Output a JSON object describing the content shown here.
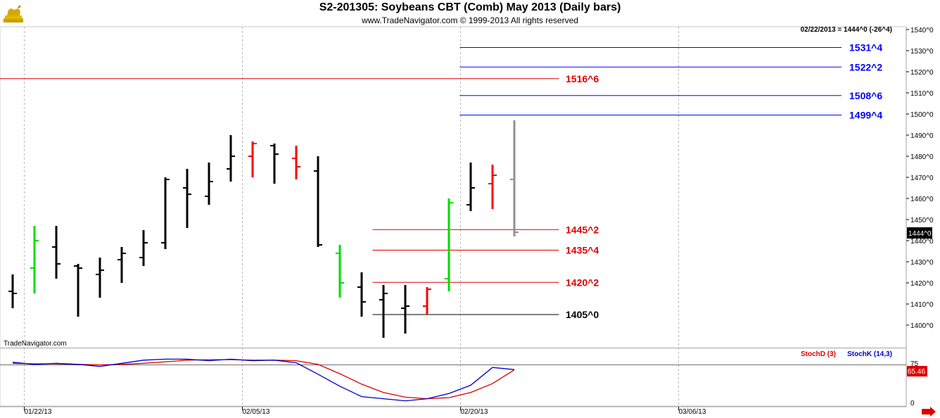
{
  "header": {
    "title": "S2-201305:  Soybeans CBT (Comb) May 2013  (Daily bars)",
    "subtitle": "www.TradeNavigator.com © 1999-2013 All rights reserved"
  },
  "watermark": "TradeNavigator.com",
  "last_price_note": "02/22/2013 = 1444^0 (-26^4)",
  "current_price_tag": "1444^0",
  "logo_icon": "golden-bull-icon",
  "scroll_arrow_icon": "red-right-arrow-icon",
  "colors": {
    "up_bar": "#000000",
    "down_bar": "#ff0000",
    "green_bar": "#00dd00",
    "current_bar": "#909090",
    "blue_level": "#0000ff",
    "red_level": "#dd0000",
    "stoch_d": "#dd0000",
    "stoch_k": "#0000cc"
  },
  "chart_data": [
    {
      "type": "ohlc",
      "title": "S2-201305:  Soybeans CBT (Comb) May 2013  (Daily bars)",
      "y_ticks": [
        "1540^0",
        "1530^0",
        "1520^0",
        "1510^0",
        "1500^0",
        "1490^0",
        "1480^0",
        "1470^0",
        "1460^0",
        "1450^0",
        "1440^0",
        "1430^0",
        "1420^0",
        "1410^0",
        "1400^0"
      ],
      "ylim": [
        1392,
        1542
      ],
      "x_ticks": [
        "01/22/13",
        "02/05/13",
        "02/20/13",
        "03/06/13"
      ],
      "x_tick_bar_index": [
        0.5,
        10.5,
        20.5,
        30.5
      ],
      "bars": [
        {
          "o": 1416,
          "h": 1424,
          "l": 1408,
          "c": 1415,
          "color": "black"
        },
        {
          "o": 1427,
          "h": 1447,
          "l": 1415,
          "c": 1440,
          "color": "green"
        },
        {
          "o": 1437,
          "h": 1447,
          "l": 1422,
          "c": 1429,
          "color": "black"
        },
        {
          "o": 1428,
          "h": 1429,
          "l": 1404,
          "c": 1427,
          "color": "black"
        },
        {
          "o": 1424,
          "h": 1432,
          "l": 1413,
          "c": 1426,
          "color": "black"
        },
        {
          "o": 1431,
          "h": 1437,
          "l": 1420,
          "c": 1434,
          "color": "black"
        },
        {
          "o": 1432,
          "h": 1445,
          "l": 1428,
          "c": 1439,
          "color": "black"
        },
        {
          "o": 1439,
          "h": 1470,
          "l": 1436,
          "c": 1469,
          "color": "black"
        },
        {
          "o": 1465,
          "h": 1474,
          "l": 1446,
          "c": 1462,
          "color": "black"
        },
        {
          "o": 1461,
          "h": 1477,
          "l": 1457,
          "c": 1468,
          "color": "black"
        },
        {
          "o": 1474,
          "h": 1490,
          "l": 1468,
          "c": 1480,
          "color": "black"
        },
        {
          "o": 1480,
          "h": 1487,
          "l": 1470,
          "c": 1486,
          "color": "red"
        },
        {
          "o": 1485,
          "h": 1486,
          "l": 1467,
          "c": 1481,
          "color": "black"
        },
        {
          "o": 1479,
          "h": 1485,
          "l": 1469,
          "c": 1475,
          "color": "red"
        },
        {
          "o": 1473,
          "h": 1480,
          "l": 1437,
          "c": 1438,
          "color": "black"
        },
        {
          "o": 1434,
          "h": 1438,
          "l": 1413,
          "c": 1420,
          "color": "green"
        },
        {
          "o": 1418,
          "h": 1425,
          "l": 1404,
          "c": 1411,
          "color": "black"
        },
        {
          "o": 1412,
          "h": 1419,
          "l": 1394,
          "c": 1415,
          "color": "black"
        },
        {
          "o": 1408,
          "h": 1419,
          "l": 1396,
          "c": 1409,
          "color": "black"
        },
        {
          "o": 1409,
          "h": 1418,
          "l": 1405,
          "c": 1417,
          "color": "red"
        },
        {
          "o": 1422,
          "h": 1460,
          "l": 1416,
          "c": 1458,
          "color": "green"
        },
        {
          "o": 1457,
          "h": 1477,
          "l": 1454,
          "c": 1465,
          "color": "black"
        },
        {
          "o": 1467,
          "h": 1476,
          "l": 1455,
          "c": 1471,
          "color": "red"
        },
        {
          "o": 1469,
          "h": 1497,
          "l": 1442,
          "c": 1444,
          "color": "gray"
        }
      ],
      "levels": [
        {
          "value": 1531.5,
          "label": "1531^4",
          "color": "blue",
          "start_bar": 20.5,
          "end_bar": 38
        },
        {
          "value": 1522.25,
          "label": "1522^2",
          "color": "blue",
          "start_bar": 20.5,
          "end_bar": 38
        },
        {
          "value": 1516.75,
          "label": "1516^6",
          "color": "red",
          "start_bar": -1.2,
          "end_bar": 24.4
        },
        {
          "value": 1508.75,
          "label": "1508^6",
          "color": "blue",
          "start_bar": 20.5,
          "end_bar": 38
        },
        {
          "value": 1499.5,
          "label": "1499^4",
          "color": "blue",
          "start_bar": 20.5,
          "end_bar": 38
        },
        {
          "value": 1445.25,
          "label": "1445^2",
          "color": "red",
          "start_bar": 16.5,
          "end_bar": 24.4
        },
        {
          "value": 1435.5,
          "label": "1435^4",
          "color": "red",
          "start_bar": 16.5,
          "end_bar": 24.4
        },
        {
          "value": 1420.25,
          "label": "1420^2",
          "color": "red",
          "start_bar": 16.5,
          "end_bar": 24.4
        },
        {
          "value": 1405,
          "label": "1405^0",
          "color": "black",
          "start_bar": 16.5,
          "end_bar": 24.4
        }
      ]
    },
    {
      "type": "line",
      "title": "",
      "legend": [
        "StochD (3)",
        "StochK (14,3)"
      ],
      "y_ticks": [
        "75",
        "0"
      ],
      "ylim": [
        0,
        100
      ],
      "last_value_tag": "65.46",
      "x": [
        0,
        1,
        2,
        3,
        4,
        5,
        6,
        7,
        8,
        9,
        10,
        11,
        12,
        13,
        14,
        15,
        16,
        17,
        18,
        19,
        20,
        21,
        22,
        23
      ],
      "series": [
        {
          "name": "StochD (3)",
          "color": "red",
          "values": [
            78,
            77,
            77,
            76,
            75,
            76,
            78,
            81,
            84,
            85,
            85,
            84,
            84,
            83,
            76,
            58,
            38,
            22,
            13,
            10,
            12,
            22,
            39,
            65.46
          ]
        },
        {
          "name": "StochK (14,3)",
          "color": "blue",
          "values": [
            80,
            76,
            78,
            76,
            72,
            78,
            84,
            86,
            86,
            83,
            86,
            83,
            84,
            79,
            57,
            34,
            14,
            10,
            6,
            10,
            20,
            36,
            70,
            66
          ]
        }
      ]
    }
  ]
}
